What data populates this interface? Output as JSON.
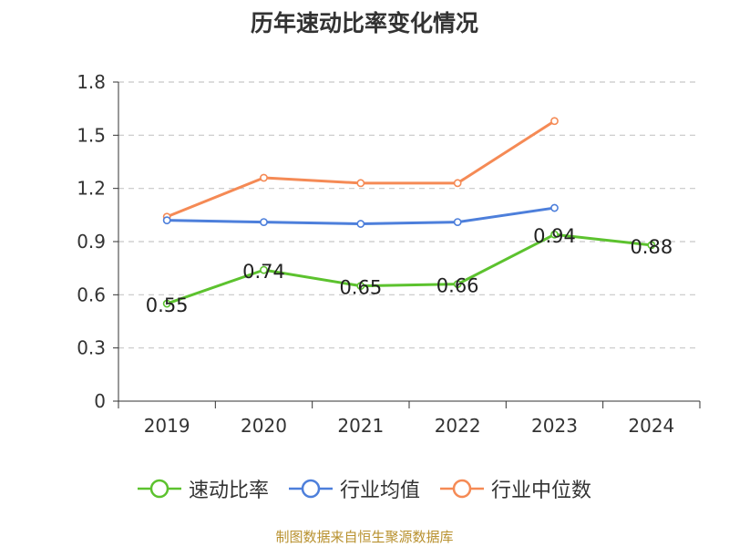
{
  "title": "历年速动比率变化情况",
  "source": "制图数据来自恒生聚源数据库",
  "legend_position": "bottom",
  "chart_data": {
    "type": "line",
    "title": "历年速动比率变化情况",
    "categories": [
      "2019",
      "2020",
      "2021",
      "2022",
      "2023",
      "2024"
    ],
    "ylim": [
      0,
      1.8
    ],
    "yticks": [
      "0",
      "0.3",
      "0.6",
      "0.9",
      "1.2",
      "1.5",
      "1.8"
    ],
    "grid": true,
    "series": [
      {
        "name": "速动比率",
        "color": "#5cc22e",
        "values": [
          0.55,
          0.74,
          0.65,
          0.66,
          0.94,
          0.88
        ],
        "labels": [
          "0.55",
          "0.74",
          "0.65",
          "0.66",
          "0.94",
          "0.88"
        ]
      },
      {
        "name": "行业均值",
        "color": "#4d7fdb",
        "values": [
          1.02,
          1.01,
          1.0,
          1.01,
          1.09,
          null
        ]
      },
      {
        "name": "行业中位数",
        "color": "#f58a55",
        "values": [
          1.04,
          1.26,
          1.23,
          1.23,
          1.58,
          null
        ]
      }
    ]
  }
}
